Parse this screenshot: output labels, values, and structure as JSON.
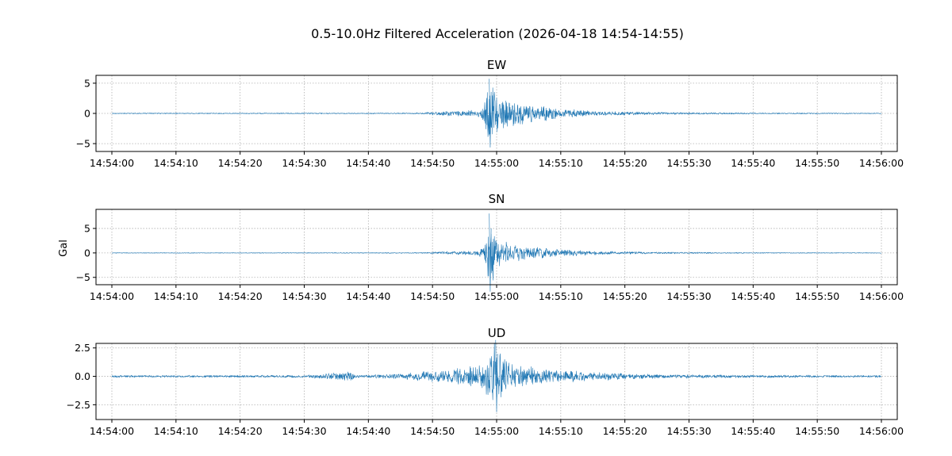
{
  "figure": {
    "title": "0.5-10.0Hz Filtered Acceleration (2026-04-18 14:54-14:55)",
    "ylabel": "Gal"
  },
  "colors": {
    "trace": "#1f77b4",
    "grid": "#b0b0b0",
    "axes": "#000000"
  },
  "chart_data": [
    {
      "type": "line",
      "title": "EW",
      "xlabel": "",
      "ylabel": "",
      "grid": true,
      "x_unit": "time (HH:MM:SS)",
      "x_range": [
        "14:54:00",
        "14:56:00"
      ],
      "ylim": [
        -6.3,
        6.3
      ],
      "x_ticks": [
        "14:54:00",
        "14:54:10",
        "14:54:20",
        "14:54:30",
        "14:54:40",
        "14:54:50",
        "14:55:00",
        "14:55:10",
        "14:55:20",
        "14:55:30",
        "14:55:40",
        "14:55:50",
        "14:56:00"
      ],
      "y_ticks": [
        {
          "value": 5,
          "label": "5"
        },
        {
          "value": 0,
          "label": "0"
        },
        {
          "value": -5,
          "label": "−5"
        }
      ],
      "envelope": [
        [
          "14:54:00",
          0.08
        ],
        [
          "14:54:48",
          0.1
        ],
        [
          "14:54:50",
          0.35
        ],
        [
          "14:54:57",
          0.6
        ],
        [
          "14:54:58",
          1.5
        ],
        [
          "14:54:59",
          5.9
        ],
        [
          "14:55:00",
          3.8
        ],
        [
          "14:55:02",
          2.6
        ],
        [
          "14:55:05",
          1.7
        ],
        [
          "14:55:10",
          0.8
        ],
        [
          "14:55:15",
          0.45
        ],
        [
          "14:55:25",
          0.22
        ],
        [
          "14:55:40",
          0.12
        ],
        [
          "14:56:00",
          0.08
        ]
      ]
    },
    {
      "type": "line",
      "title": "SN",
      "xlabel": "",
      "ylabel": "Gal",
      "grid": true,
      "x_unit": "time (HH:MM:SS)",
      "x_range": [
        "14:54:00",
        "14:56:00"
      ],
      "ylim": [
        -6.5,
        8.9
      ],
      "x_ticks": [
        "14:54:00",
        "14:54:10",
        "14:54:20",
        "14:54:30",
        "14:54:40",
        "14:54:50",
        "14:55:00",
        "14:55:10",
        "14:55:20",
        "14:55:30",
        "14:55:40",
        "14:55:50",
        "14:56:00"
      ],
      "y_ticks": [
        {
          "value": 5,
          "label": "5"
        },
        {
          "value": 0,
          "label": "0"
        },
        {
          "value": -5,
          "label": "−5"
        }
      ],
      "envelope": [
        [
          "14:54:00",
          0.06
        ],
        [
          "14:54:48",
          0.1
        ],
        [
          "14:54:50",
          0.25
        ],
        [
          "14:54:57",
          0.5
        ],
        [
          "14:54:58",
          1.2
        ],
        [
          "14:54:59",
          8.3
        ],
        [
          "14:55:00",
          3.5
        ],
        [
          "14:55:02",
          2.2
        ],
        [
          "14:55:05",
          1.5
        ],
        [
          "14:55:10",
          0.8
        ],
        [
          "14:55:15",
          0.45
        ],
        [
          "14:55:25",
          0.2
        ],
        [
          "14:55:40",
          0.1
        ],
        [
          "14:56:00",
          0.07
        ]
      ]
    },
    {
      "type": "line",
      "title": "UD",
      "xlabel": "",
      "ylabel": "",
      "grid": true,
      "x_unit": "time (HH:MM:SS)",
      "x_range": [
        "14:54:00",
        "14:56:00"
      ],
      "ylim": [
        -3.8,
        2.9
      ],
      "x_ticks": [
        "14:54:00",
        "14:54:10",
        "14:54:20",
        "14:54:30",
        "14:54:40",
        "14:54:50",
        "14:55:00",
        "14:55:10",
        "14:55:20",
        "14:55:30",
        "14:55:40",
        "14:55:50",
        "14:56:00"
      ],
      "y_ticks": [
        {
          "value": 2.5,
          "label": "2.5"
        },
        {
          "value": 0,
          "label": "0.0"
        },
        {
          "value": -2.5,
          "label": "−2.5"
        }
      ],
      "envelope": [
        [
          "14:54:00",
          0.1
        ],
        [
          "14:54:30",
          0.12
        ],
        [
          "14:54:37",
          0.45
        ],
        [
          "14:54:38",
          0.12
        ],
        [
          "14:54:45",
          0.25
        ],
        [
          "14:54:50",
          0.55
        ],
        [
          "14:54:55",
          0.8
        ],
        [
          "14:54:58",
          1.3
        ],
        [
          "14:54:59",
          2.6
        ],
        [
          "14:55:00",
          3.3
        ],
        [
          "14:55:02",
          1.2
        ],
        [
          "14:55:05",
          0.9
        ],
        [
          "14:55:10",
          0.6
        ],
        [
          "14:55:15",
          0.4
        ],
        [
          "14:55:25",
          0.2
        ],
        [
          "14:55:40",
          0.14
        ],
        [
          "14:56:00",
          0.1
        ]
      ]
    }
  ]
}
